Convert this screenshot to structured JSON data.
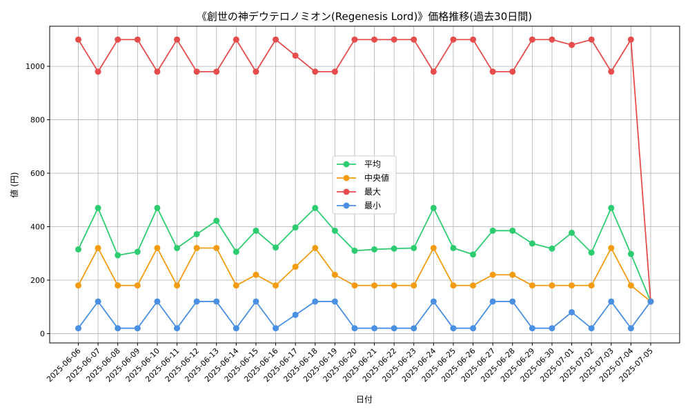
{
  "chart_data": {
    "type": "line",
    "title": "《創世の神デウテロノミオン(Regenesis Lord)》価格推移(過去30日間)",
    "xlabel": "日付",
    "ylabel": "値 (円)",
    "ylim": [
      -35,
      1150
    ],
    "yticks": [
      0,
      200,
      400,
      600,
      800,
      1000
    ],
    "grid": true,
    "legend_position": "center",
    "categories": [
      "2025-06-06",
      "2025-06-07",
      "2025-06-08",
      "2025-06-09",
      "2025-06-10",
      "2025-06-11",
      "2025-06-12",
      "2025-06-13",
      "2025-06-14",
      "2025-06-15",
      "2025-06-16",
      "2025-06-17",
      "2025-06-18",
      "2025-06-19",
      "2025-06-20",
      "2025-06-21",
      "2025-06-22",
      "2025-06-23",
      "2025-06-24",
      "2025-06-25",
      "2025-06-26",
      "2025-06-27",
      "2025-06-28",
      "2025-06-29",
      "2025-06-30",
      "2025-07-01",
      "2025-07-02",
      "2025-07-03",
      "2025-07-04",
      "2025-07-05"
    ],
    "series": [
      {
        "name": "平均",
        "color": "#2ecc71",
        "values": [
          315,
          470,
          293,
          306,
          470,
          320,
          372,
          422,
          306,
          385,
          322,
          397,
          470,
          385,
          310,
          315,
          318,
          320,
          470,
          320,
          296,
          385,
          385,
          337,
          318,
          377,
          303,
          470,
          298,
          120
        ]
      },
      {
        "name": "中央値",
        "color": "#f39c12",
        "values": [
          180,
          320,
          180,
          180,
          320,
          180,
          320,
          320,
          180,
          220,
          180,
          250,
          320,
          220,
          180,
          180,
          180,
          180,
          320,
          180,
          180,
          220,
          220,
          180,
          180,
          180,
          180,
          320,
          180,
          120
        ]
      },
      {
        "name": "最大",
        "color": "#e74c4c",
        "values": [
          1100,
          980,
          1100,
          1100,
          980,
          1100,
          980,
          980,
          1100,
          980,
          1100,
          1040,
          980,
          980,
          1100,
          1100,
          1100,
          1100,
          980,
          1100,
          1100,
          980,
          980,
          1100,
          1100,
          1080,
          1100,
          980,
          1100,
          120
        ]
      },
      {
        "name": "最小",
        "color": "#4a90e2",
        "values": [
          20,
          120,
          20,
          20,
          120,
          20,
          120,
          120,
          20,
          120,
          20,
          70,
          120,
          120,
          20,
          20,
          20,
          20,
          120,
          20,
          20,
          120,
          120,
          20,
          20,
          80,
          20,
          120,
          20,
          120
        ]
      }
    ]
  }
}
